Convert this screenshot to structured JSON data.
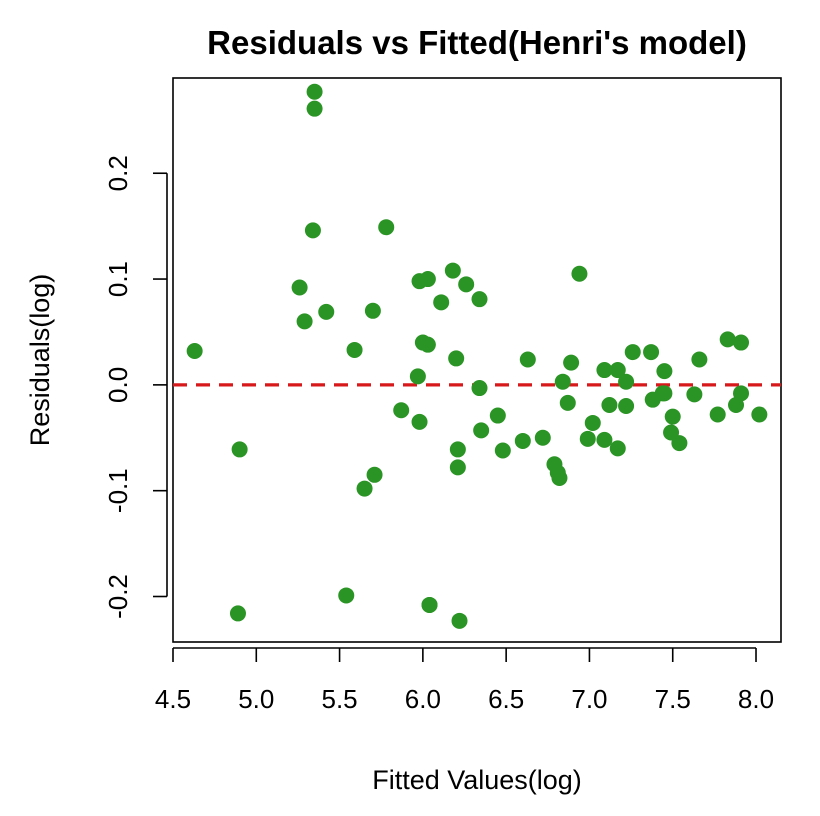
{
  "chart_data": {
    "type": "scatter",
    "title": "Residuals vs Fitted(Henri's model)",
    "xlabel": "Fitted Values(log)",
    "ylabel": "Residuals(log)",
    "xlim": [
      4.5,
      8.15
    ],
    "ylim": [
      -0.243,
      0.29
    ],
    "x_ticks": [
      "4.5",
      "5.0",
      "5.5",
      "6.0",
      "6.5",
      "7.0",
      "7.5",
      "8.0"
    ],
    "y_ticks": [
      "-0.2",
      "-0.1",
      "0.0",
      "0.1",
      "0.2"
    ],
    "grid": false,
    "reference_line": {
      "y": 0.0,
      "style": "dashed",
      "color": "#d7191c"
    },
    "point_color": "#2a9424",
    "series": [
      {
        "x": [
          4.63,
          4.89,
          4.9,
          5.26,
          5.29,
          5.34,
          5.35,
          5.35,
          5.42,
          5.54,
          5.59,
          5.65,
          5.7,
          5.71,
          5.78,
          5.87,
          5.97,
          5.98,
          5.98,
          6.0,
          6.03,
          6.03,
          6.04,
          6.04,
          6.11,
          6.18,
          6.2,
          6.21,
          6.21,
          6.22,
          6.26,
          6.34,
          6.34,
          6.35,
          6.45,
          6.48,
          6.6,
          6.63,
          6.72,
          6.79,
          6.81,
          6.82,
          6.84,
          6.87,
          6.89,
          6.94,
          6.99,
          7.02,
          7.09,
          7.09,
          7.12,
          7.17,
          7.17,
          7.22,
          7.22,
          7.26,
          7.37,
          7.38,
          7.44,
          7.45,
          7.45,
          7.49,
          7.5,
          7.54,
          7.63,
          7.66,
          7.77,
          7.83,
          7.88,
          7.91,
          7.91,
          8.02
        ],
        "y": [
          0.032,
          -0.216,
          -0.061,
          0.092,
          0.06,
          0.146,
          0.277,
          0.261,
          0.069,
          -0.199,
          0.033,
          -0.098,
          0.07,
          -0.085,
          0.149,
          -0.024,
          0.008,
          0.098,
          -0.035,
          0.04,
          0.1,
          0.038,
          -0.208,
          -0.208,
          0.078,
          0.108,
          0.025,
          -0.061,
          -0.078,
          -0.223,
          0.095,
          -0.003,
          0.081,
          -0.043,
          -0.029,
          -0.062,
          -0.053,
          0.024,
          -0.05,
          -0.075,
          -0.083,
          -0.088,
          0.003,
          -0.017,
          0.021,
          0.105,
          -0.051,
          -0.036,
          0.014,
          -0.052,
          -0.019,
          0.014,
          -0.06,
          0.003,
          -0.02,
          0.031,
          0.031,
          -0.014,
          -0.008,
          0.013,
          -0.008,
          -0.045,
          -0.03,
          -0.055,
          -0.009,
          0.024,
          -0.028,
          0.043,
          -0.019,
          -0.008,
          0.04,
          -0.028
        ]
      }
    ]
  }
}
